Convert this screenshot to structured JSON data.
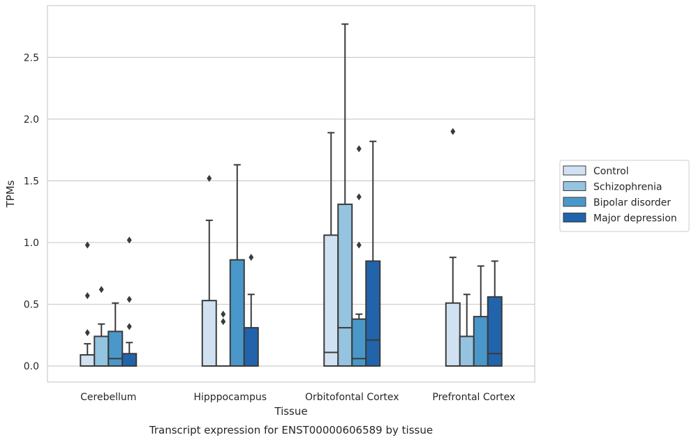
{
  "chart_data": {
    "type": "box",
    "xlabel": "Tissue",
    "ylabel": "TPMs",
    "caption": "Transcript expression for ENST00000606589 by tissue",
    "ylim": [
      -0.13,
      2.92
    ],
    "yticks": [
      0.0,
      0.5,
      1.0,
      1.5,
      2.0,
      2.5
    ],
    "ytick_labels": [
      "0.0",
      "0.5",
      "1.0",
      "1.5",
      "2.0",
      "2.5"
    ],
    "grid": true,
    "legend_position": "right",
    "categories": [
      "Cerebellum",
      "Hipppocampus",
      "Orbitofontal Cortex",
      "Prefrontal Cortex"
    ],
    "series": [
      {
        "name": "Control",
        "color": "#d0e1f2",
        "boxes": [
          {
            "whislo": 0.0,
            "q1": 0.0,
            "med": 0.0,
            "q3": 0.09,
            "whishi": 0.18,
            "fliers": [
              0.27,
              0.57,
              0.98
            ]
          },
          {
            "whislo": 0.0,
            "q1": 0.0,
            "med": 0.0,
            "q3": 0.53,
            "whishi": 1.18,
            "fliers": [
              1.52
            ]
          },
          {
            "whislo": 0.0,
            "q1": 0.0,
            "med": 0.11,
            "q3": 1.06,
            "whishi": 1.89,
            "fliers": []
          },
          {
            "whislo": 0.0,
            "q1": 0.0,
            "med": 0.0,
            "q3": 0.51,
            "whishi": 0.88,
            "fliers": [
              1.9
            ]
          }
        ]
      },
      {
        "name": "Schizophrenia",
        "color": "#94c4df",
        "boxes": [
          {
            "whislo": 0.0,
            "q1": 0.0,
            "med": 0.0,
            "q3": 0.24,
            "whishi": 0.34,
            "fliers": [
              0.62
            ]
          },
          {
            "whislo": 0.0,
            "q1": 0.0,
            "med": 0.0,
            "q3": 0.0,
            "whishi": 0.0,
            "fliers": [
              0.36,
              0.42
            ]
          },
          {
            "whislo": 0.0,
            "q1": 0.0,
            "med": 0.31,
            "q3": 1.31,
            "whishi": 2.77,
            "fliers": []
          },
          {
            "whislo": 0.0,
            "q1": 0.0,
            "med": 0.0,
            "q3": 0.24,
            "whishi": 0.58,
            "fliers": []
          }
        ]
      },
      {
        "name": "Bipolar disorder",
        "color": "#4a98c9",
        "boxes": [
          {
            "whislo": 0.0,
            "q1": 0.0,
            "med": 0.06,
            "q3": 0.28,
            "whishi": 0.51,
            "fliers": []
          },
          {
            "whislo": 0.0,
            "q1": 0.0,
            "med": 0.0,
            "q3": 0.86,
            "whishi": 1.63,
            "fliers": []
          },
          {
            "whislo": 0.0,
            "q1": 0.0,
            "med": 0.06,
            "q3": 0.38,
            "whishi": 0.42,
            "fliers": [
              0.98,
              1.37,
              1.76
            ]
          },
          {
            "whislo": 0.0,
            "q1": 0.0,
            "med": 0.0,
            "q3": 0.4,
            "whishi": 0.81,
            "fliers": []
          }
        ]
      },
      {
        "name": "Major depression",
        "color": "#2164ab",
        "boxes": [
          {
            "whislo": 0.0,
            "q1": 0.0,
            "med": 0.0,
            "q3": 0.1,
            "whishi": 0.19,
            "fliers": [
              0.32,
              0.54,
              1.02
            ]
          },
          {
            "whislo": 0.0,
            "q1": 0.0,
            "med": 0.0,
            "q3": 0.31,
            "whishi": 0.58,
            "fliers": [
              0.88
            ]
          },
          {
            "whislo": 0.0,
            "q1": 0.0,
            "med": 0.21,
            "q3": 0.85,
            "whishi": 1.82,
            "fliers": []
          },
          {
            "whislo": 0.0,
            "q1": 0.0,
            "med": 0.1,
            "q3": 0.56,
            "whishi": 0.85,
            "fliers": []
          }
        ]
      }
    ]
  }
}
